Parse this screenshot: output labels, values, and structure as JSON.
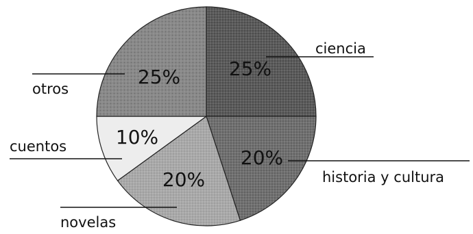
{
  "chart_data": {
    "type": "pie",
    "slices": [
      {
        "label": "ciencia",
        "value": 25,
        "value_label": "25%",
        "color": "#5b5b5b",
        "pattern": "dots-dark"
      },
      {
        "label": "historia y cultura",
        "value": 20,
        "value_label": "20%",
        "color": "#707070",
        "pattern": "dots-medium"
      },
      {
        "label": "novelas",
        "value": 20,
        "value_label": "20%",
        "color": "#a9a9a9",
        "pattern": "dots-light"
      },
      {
        "label": "cuentos",
        "value": 10,
        "value_label": "10%",
        "color": "#ededed",
        "pattern": "plain"
      },
      {
        "label": "otros",
        "value": 25,
        "value_label": "25%",
        "color": "#8a8a8a",
        "pattern": "dots-grid"
      }
    ],
    "start_angle_deg": 0,
    "direction": "clockwise",
    "legend": "none",
    "labels": "outside-with-leader-lines"
  }
}
